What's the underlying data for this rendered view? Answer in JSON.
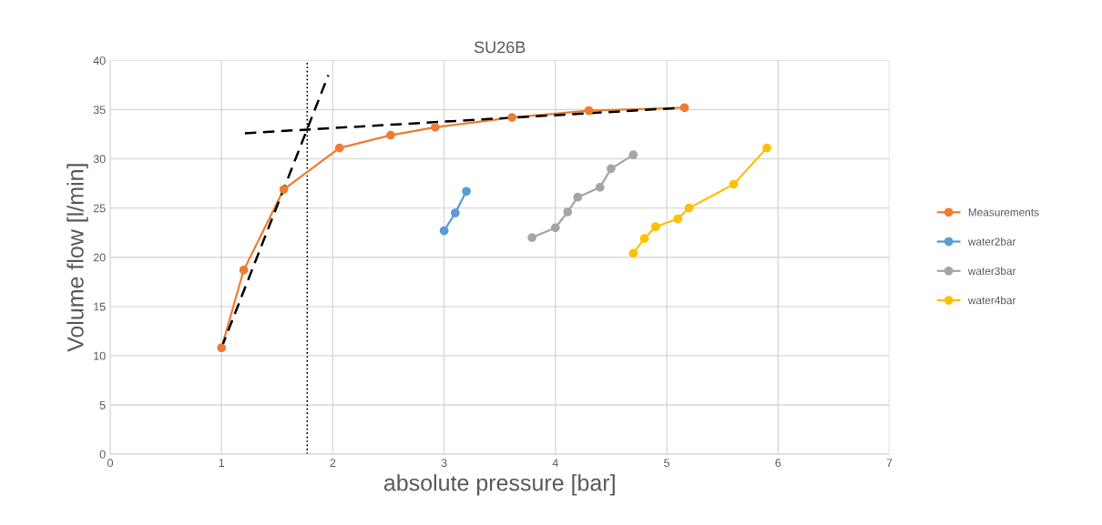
{
  "chart_data": {
    "type": "line",
    "title": "SU26B",
    "xlabel": "absolute pressure [bar]",
    "ylabel": "Volume flow [l/min]",
    "xlim": [
      0,
      7
    ],
    "xticks": [
      0,
      1,
      2,
      3,
      4,
      5,
      6,
      7
    ],
    "ylim": [
      0,
      40
    ],
    "yticks": [
      0,
      5,
      10,
      15,
      20,
      25,
      30,
      35,
      40
    ],
    "grid": true,
    "legend": "right",
    "marker": "circle",
    "series": [
      {
        "name": "Measurements",
        "color": "#ed7d31",
        "x": [
          1.0,
          1.2,
          1.56,
          2.06,
          2.52,
          2.92,
          3.61,
          4.3,
          5.16
        ],
        "values": [
          10.8,
          18.7,
          26.9,
          31.1,
          32.4,
          33.2,
          34.2,
          34.9,
          35.2
        ]
      },
      {
        "name": "water2bar",
        "color": "#5b9bd5",
        "x": [
          3.0,
          3.1,
          3.2
        ],
        "values": [
          22.7,
          24.5,
          26.7
        ]
      },
      {
        "name": "water3bar",
        "color": "#a5a5a5",
        "x": [
          3.79,
          4.0,
          4.11,
          4.2,
          4.4,
          4.5,
          4.7
        ],
        "values": [
          22.0,
          23.0,
          24.6,
          26.1,
          27.1,
          29.0,
          30.4
        ]
      },
      {
        "name": "water4bar",
        "color": "#ffc000",
        "x": [
          4.7,
          4.8,
          4.9,
          5.1,
          5.2,
          5.6,
          5.9
        ],
        "values": [
          20.4,
          21.9,
          23.1,
          23.9,
          25.0,
          27.4,
          31.1
        ]
      },
      {
        "color": "#000000",
        "x": [
          1.0,
          1.96
        ],
        "values": [
          10.8,
          38.5
        ],
        "marker": "none",
        "line_style": "dashed"
      },
      {
        "color": "#000000",
        "x": [
          1.21,
          5.16
        ],
        "values": [
          32.6,
          35.2
        ],
        "marker": "none",
        "line_style": "dashed"
      }
    ],
    "ref_lines": [
      {
        "axis": "x",
        "value": 1.77,
        "color": "#000000",
        "line_style": "dotted"
      }
    ]
  }
}
